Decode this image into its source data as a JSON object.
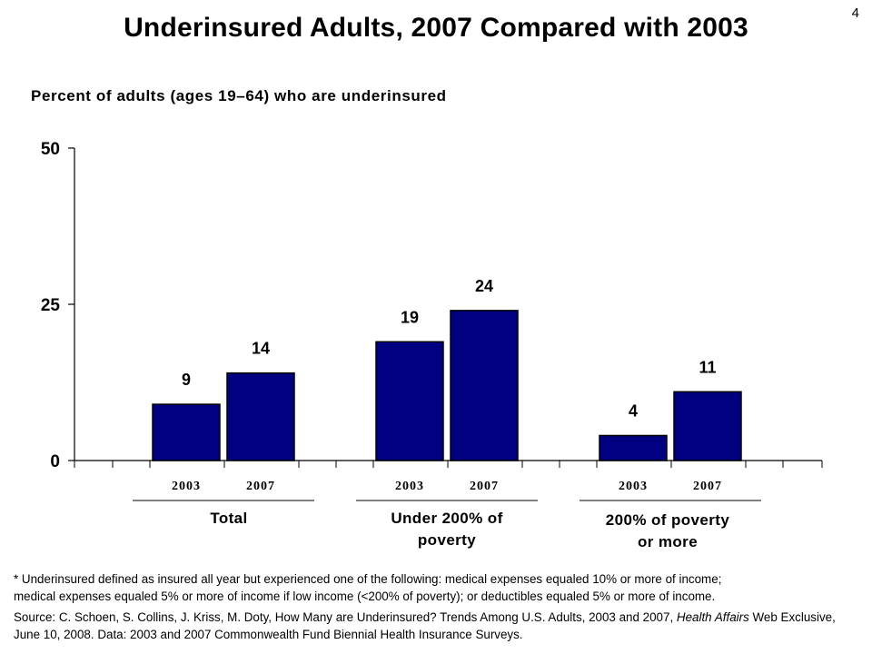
{
  "slide_number": "4",
  "chart_data": {
    "type": "bar",
    "title": "Underinsured Adults, 2007 Compared with 2003",
    "subtitle": "Percent of adults (ages 19–64) who are underinsured",
    "ylim": [
      0,
      50
    ],
    "yticks": [
      "0",
      "25",
      "50"
    ],
    "groups": [
      {
        "name": "Total",
        "categories": [
          "2003",
          "2007"
        ],
        "values": [
          9,
          14
        ],
        "value_labels": [
          "9",
          "14"
        ]
      },
      {
        "name": "Under 200% of poverty",
        "categories": [
          "2003",
          "2007"
        ],
        "values": [
          19,
          24
        ],
        "value_labels": [
          "19",
          "24"
        ]
      },
      {
        "name": "200% of poverty or more",
        "categories": [
          "2003",
          "2007"
        ],
        "values": [
          4,
          11
        ],
        "value_labels": [
          "4",
          "11"
        ]
      }
    ],
    "bar_color": "#000080"
  },
  "group_labels": {
    "g0": "Total",
    "g1_l1": "Under 200% of",
    "g1_l2": "poverty",
    "g2_l1": "200% of poverty",
    "g2_l2": "or more"
  },
  "footnotes": {
    "definition_l1": "* Underinsured defined as insured all year but experienced one of the following: medical expenses equaled 10% or more of income;",
    "definition_l2": "medical expenses equaled 5% or more of income if low income (<200% of poverty); or deductibles equaled 5% or more of income.",
    "source_prefix": "Source: C. Schoen, S. Collins, J. Kriss, M. Doty, How Many are Underinsured? Trends Among U.S. Adults, 2003 and 2007, ",
    "source_journal": "Health Affairs",
    "source_suffix": " Web Exclusive, June 10, 2008. Data: 2003 and 2007 Commonwealth Fund Biennial Health Insurance Surveys."
  }
}
